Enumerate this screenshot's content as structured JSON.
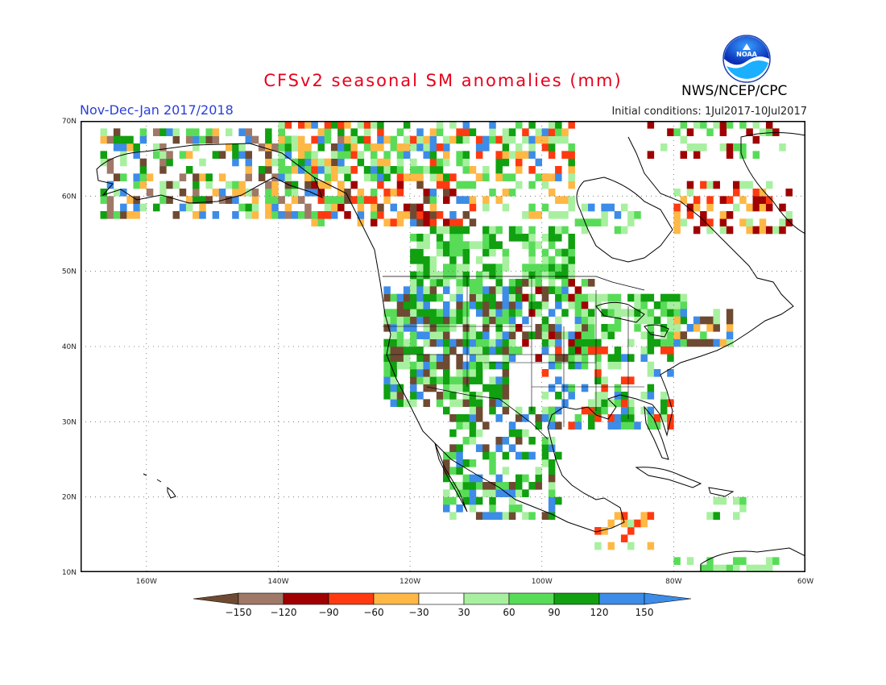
{
  "title": "CFSv2 seasonal SM anomalies (mm)",
  "period": "Nov-Dec-Jan 2017/2018",
  "initial_conditions": "Initial conditions: 1Jul2017-10Jul2017",
  "agency": "NWS/NCEP/CPC",
  "logo_text": "NOAA",
  "map": {
    "lon_min": -170,
    "lon_max": -60,
    "lat_min": 10,
    "lat_max": 70,
    "lat_labels": [
      {
        "lat": 70,
        "text": "70N"
      },
      {
        "lat": 60,
        "text": "60N"
      },
      {
        "lat": 50,
        "text": "50N"
      },
      {
        "lat": 40,
        "text": "40N"
      },
      {
        "lat": 30,
        "text": "30N"
      },
      {
        "lat": 20,
        "text": "20N"
      },
      {
        "lat": 10,
        "text": "10N"
      }
    ],
    "lon_labels": [
      {
        "lon": -160,
        "text": "160W"
      },
      {
        "lon": -140,
        "text": "140W"
      },
      {
        "lon": -120,
        "text": "120W"
      },
      {
        "lon": -100,
        "text": "100W"
      },
      {
        "lon": -80,
        "text": "80W"
      },
      {
        "lon": -60,
        "text": "60W"
      }
    ],
    "grid_lons": [
      -160,
      -140,
      -120,
      -100,
      -80
    ],
    "grid_lats": [
      60,
      50,
      40,
      30,
      20
    ]
  },
  "legend": {
    "labels": [
      "-150",
      "-120",
      "-90",
      "-60",
      "-30",
      "30",
      "60",
      "90",
      "120",
      "150"
    ],
    "colors": [
      "#6e4a32",
      "#a07868",
      "#a00000",
      "#ff3a10",
      "#ffb845",
      "#ffffff",
      "#a8f0a0",
      "#58dc58",
      "#10a010",
      "#3c8ce8",
      "#3c8ce8"
    ]
  },
  "anomaly_regions": [
    {
      "lon": [
        -167,
        -130
      ],
      "lat": [
        57,
        69
      ],
      "density": 0.45,
      "colors": [
        "#58dc58",
        "#a8f0a0",
        "#ffb845",
        "#6e4a32",
        "#3c8ce8",
        "#10a010",
        "#a07868"
      ]
    },
    {
      "lon": [
        -140,
        -95
      ],
      "lat": [
        62,
        70
      ],
      "density": 0.6,
      "colors": [
        "#58dc58",
        "#10a010",
        "#a8f0a0",
        "#3c8ce8",
        "#ffb845",
        "#ff3a10"
      ]
    },
    {
      "lon": [
        -135,
        -110
      ],
      "lat": [
        56,
        62
      ],
      "density": 0.6,
      "colors": [
        "#ff3a10",
        "#a00000",
        "#ffb845",
        "#3c8ce8",
        "#6e4a32",
        "#58dc58"
      ]
    },
    {
      "lon": [
        -110,
        -95
      ],
      "lat": [
        57,
        63
      ],
      "density": 0.4,
      "colors": [
        "#ffb845",
        "#a8f0a0",
        "#58dc58"
      ]
    },
    {
      "lon": [
        -120,
        -95
      ],
      "lat": [
        48,
        56
      ],
      "density": 0.65,
      "colors": [
        "#a8f0a0",
        "#58dc58",
        "#10a010"
      ]
    },
    {
      "lon": [
        -95,
        -85
      ],
      "lat": [
        55,
        59
      ],
      "density": 0.5,
      "colors": [
        "#a8f0a0",
        "#58dc58",
        "#3c8ce8"
      ]
    },
    {
      "lon": [
        -124,
        -105
      ],
      "lat": [
        32,
        48
      ],
      "density": 0.8,
      "colors": [
        "#58dc58",
        "#10a010",
        "#a8f0a0",
        "#3c8ce8",
        "#6e4a32"
      ]
    },
    {
      "lon": [
        -105,
        -92
      ],
      "lat": [
        38,
        49
      ],
      "density": 0.6,
      "colors": [
        "#58dc58",
        "#10a010",
        "#a8f0a0",
        "#3c8ce8",
        "#6e4a32",
        "#a00000"
      ]
    },
    {
      "lon": [
        -95,
        -78
      ],
      "lat": [
        40,
        47
      ],
      "density": 0.65,
      "colors": [
        "#10a010",
        "#58dc58",
        "#a8f0a0"
      ]
    },
    {
      "lon": [
        -80,
        -70
      ],
      "lat": [
        40,
        45
      ],
      "density": 0.6,
      "colors": [
        "#58dc58",
        "#6e4a32",
        "#a8f0a0",
        "#3c8ce8",
        "#ffb845"
      ]
    },
    {
      "lon": [
        -100,
        -80
      ],
      "lat": [
        29,
        40
      ],
      "density": 0.5,
      "colors": [
        "#58dc58",
        "#a8f0a0",
        "#3c8ce8",
        "#10a010",
        "#ff3a10"
      ]
    },
    {
      "lon": [
        -115,
        -97
      ],
      "lat": [
        17,
        32
      ],
      "density": 0.55,
      "colors": [
        "#58dc58",
        "#a8f0a0",
        "#10a010",
        "#6e4a32",
        "#3c8ce8"
      ]
    },
    {
      "lon": [
        -92,
        -82
      ],
      "lat": [
        13,
        18
      ],
      "density": 0.3,
      "colors": [
        "#ff3a10",
        "#ffb845",
        "#a8f0a0"
      ]
    },
    {
      "lon": [
        -80,
        -62
      ],
      "lat": [
        55,
        62
      ],
      "density": 0.45,
      "colors": [
        "#ffb845",
        "#a00000",
        "#ff3a10",
        "#a8f0a0"
      ]
    },
    {
      "lon": [
        -84,
        -62
      ],
      "lat": [
        65,
        70
      ],
      "density": 0.25,
      "colors": [
        "#58dc58",
        "#a8f0a0",
        "#a00000"
      ]
    },
    {
      "lon": [
        -80,
        -64
      ],
      "lat": [
        10,
        12
      ],
      "density": 0.5,
      "colors": [
        "#a8f0a0",
        "#58dc58"
      ]
    },
    {
      "lon": [
        -75,
        -68
      ],
      "lat": [
        17,
        20
      ],
      "density": 0.5,
      "colors": [
        "#58dc58",
        "#10a010",
        "#a8f0a0"
      ]
    }
  ]
}
